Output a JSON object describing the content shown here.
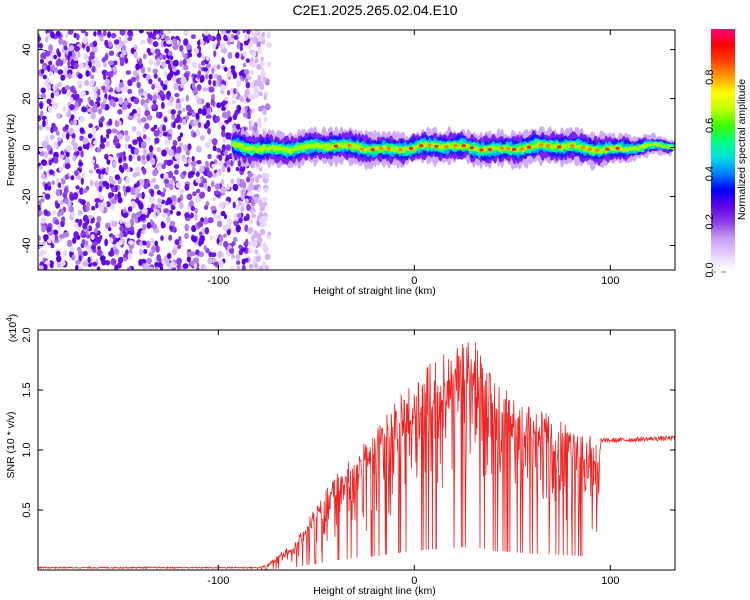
{
  "title": "C2E1.2025.265.02.04.E10",
  "chart_data": [
    {
      "type": "heatmap",
      "name": "spectrogram",
      "xlabel": "Height of straight line (km)",
      "ylabel": "Frequency (Hz)",
      "xlim": [
        -192,
        133
      ],
      "ylim": [
        -50,
        48
      ],
      "xticks": [
        -100,
        0,
        100
      ],
      "yticks": [
        40,
        20,
        0,
        -20,
        -40
      ],
      "colorbar": {
        "label": "Normalized spectral amplitude",
        "range": [
          0.0,
          1.0
        ],
        "ticks": [
          0.0,
          0.2,
          0.4,
          0.6,
          0.8
        ],
        "colors": [
          "#ffffff",
          "#e6ccff",
          "#c79bf2",
          "#8a3de6",
          "#5a00e6",
          "#0000ff",
          "#0080ff",
          "#00e0e0",
          "#00ff80",
          "#40ff00",
          "#c0ff00",
          "#ffff00",
          "#ffa000",
          "#ff4000",
          "#ff0000",
          "#ff0080"
        ]
      },
      "features": {
        "noise_region_x": [
          -192,
          -78
        ],
        "signal_band_x": [
          -92,
          133
        ],
        "signal_center_freq_hz": 0,
        "signal_band_halfwidth_hz": 4
      }
    },
    {
      "type": "line",
      "name": "snr",
      "xlabel": "Height of straight line (km)",
      "ylabel": "SNR (10 * v/v)",
      "y_multiplier": "(x10",
      "y_multiplier_exp": "4",
      "y_multiplier_close": ")",
      "xlim": [
        -192,
        133
      ],
      "ylim": [
        0,
        2.0
      ],
      "xticks": [
        -100,
        0,
        100
      ],
      "yticks": [
        0.5,
        1.0,
        1.5,
        2.0
      ],
      "ytick_labels": [
        "0.5",
        "1.0",
        "1.5",
        "2.0"
      ],
      "color": "#ee2222",
      "envelope_x": [
        -192,
        -80,
        -75,
        -60,
        -50,
        -40,
        -30,
        -20,
        -10,
        0,
        10,
        20,
        30,
        40,
        50,
        60,
        70,
        80,
        90,
        95,
        100,
        133
      ],
      "envelope_y": [
        0.02,
        0.02,
        0.05,
        0.25,
        0.55,
        0.8,
        1.0,
        1.15,
        1.4,
        1.6,
        1.75,
        1.85,
        1.95,
        1.6,
        1.5,
        1.35,
        1.3,
        1.2,
        1.12,
        1.08,
        1.08,
        1.1
      ]
    }
  ]
}
